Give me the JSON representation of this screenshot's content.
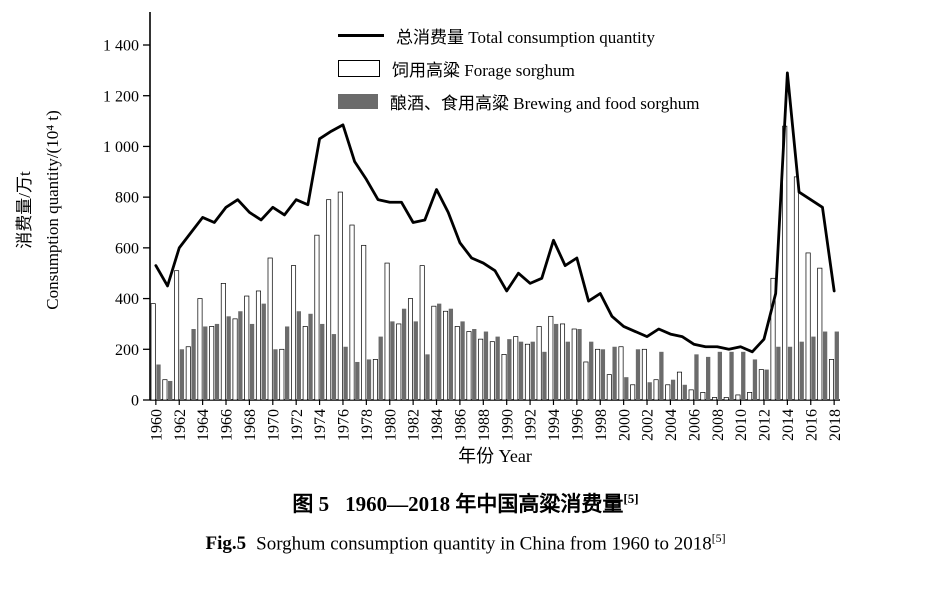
{
  "figure": {
    "caption_zh": {
      "label": "图 5",
      "text": "1960—2018 年中国高粱消费量",
      "ref": "[5]"
    },
    "caption_en": {
      "label": "Fig.5",
      "text": "Sorghum consumption quantity in China from 1960 to 2018",
      "ref": "[5]"
    }
  },
  "chart_data": {
    "type": "bar",
    "subtype": "grouped bars with overlaid line",
    "title": "",
    "xlabel": "年份 Year",
    "ylabel_zh": "消费量/万t",
    "ylabel_en": "Consumption quantity/(10⁴ t)",
    "ylim": [
      0,
      1400
    ],
    "y_tick_labels": [
      "0",
      "200",
      "400",
      "600",
      "800",
      "1 000",
      "1 200",
      "1 400"
    ],
    "grid": false,
    "legend_position": "top-center-inside",
    "x": [
      1960,
      1961,
      1962,
      1963,
      1964,
      1965,
      1966,
      1967,
      1968,
      1969,
      1970,
      1971,
      1972,
      1973,
      1974,
      1975,
      1976,
      1977,
      1978,
      1979,
      1980,
      1981,
      1982,
      1983,
      1984,
      1985,
      1986,
      1987,
      1988,
      1989,
      1990,
      1991,
      1992,
      1993,
      1994,
      1995,
      1996,
      1997,
      1998,
      1999,
      2000,
      2001,
      2002,
      2003,
      2004,
      2005,
      2006,
      2007,
      2008,
      2009,
      2010,
      2011,
      2012,
      2013,
      2014,
      2015,
      2016,
      2017,
      2018
    ],
    "series": [
      {
        "name": "总消费量 Total consumption quantity",
        "type": "line",
        "values": [
          530,
          450,
          600,
          660,
          720,
          700,
          760,
          790,
          740,
          710,
          760,
          730,
          790,
          770,
          1030,
          1060,
          1085,
          940,
          870,
          790,
          780,
          780,
          700,
          710,
          830,
          740,
          620,
          560,
          540,
          510,
          430,
          500,
          460,
          480,
          630,
          530,
          560,
          390,
          420,
          330,
          290,
          270,
          250,
          280,
          260,
          250,
          220,
          210,
          210,
          200,
          210,
          190,
          240,
          420,
          1290,
          820,
          790,
          760,
          430
        ]
      },
      {
        "name": "饲用高粱 Forage sorghum",
        "type": "bar",
        "style": "white",
        "values": [
          380,
          80,
          510,
          210,
          400,
          290,
          460,
          320,
          410,
          430,
          560,
          200,
          530,
          290,
          650,
          790,
          820,
          690,
          610,
          160,
          540,
          300,
          400,
          530,
          370,
          350,
          290,
          270,
          240,
          230,
          180,
          250,
          220,
          290,
          330,
          300,
          280,
          150,
          200,
          100,
          210,
          60,
          200,
          80,
          60,
          110,
          40,
          30,
          10,
          10,
          20,
          30,
          120,
          480,
          1080,
          880,
          580,
          520,
          160
        ]
      },
      {
        "name": "酿酒、食用高粱 Brewing and food sorghum",
        "type": "bar",
        "style": "gray",
        "values": [
          140,
          75,
          200,
          280,
          290,
          300,
          330,
          350,
          300,
          380,
          200,
          290,
          350,
          340,
          300,
          260,
          210,
          150,
          160,
          250,
          310,
          360,
          310,
          180,
          380,
          360,
          310,
          280,
          270,
          250,
          240,
          230,
          230,
          190,
          300,
          230,
          280,
          230,
          200,
          210,
          90,
          200,
          70,
          190,
          80,
          60,
          180,
          170,
          190,
          190,
          190,
          160,
          120,
          210,
          210,
          230,
          250,
          270,
          270
        ]
      }
    ],
    "colors": {
      "line": "#000000",
      "forage_fill": "#ffffff",
      "brewing_fill": "#6b6b6b",
      "axis": "#000000"
    }
  }
}
